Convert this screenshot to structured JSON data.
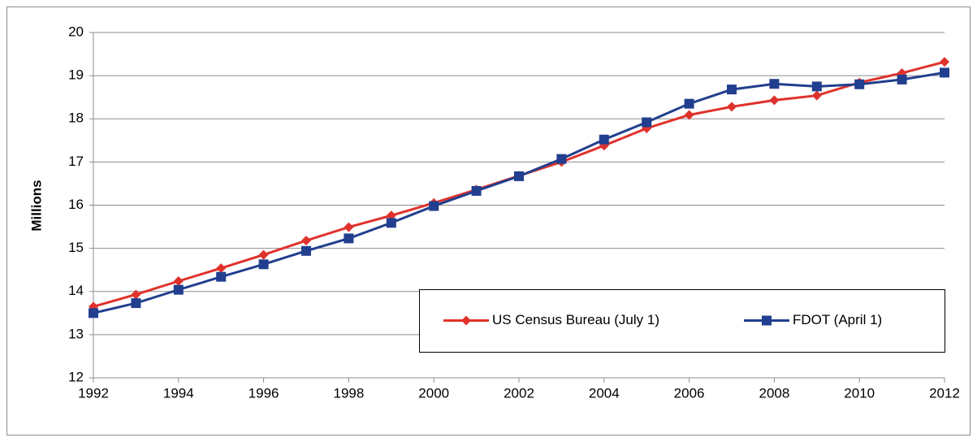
{
  "chart_data": {
    "type": "line",
    "y_label": "Millions",
    "x": [
      1992,
      1993,
      1994,
      1995,
      1996,
      1997,
      1998,
      1999,
      2000,
      2001,
      2002,
      2003,
      2004,
      2005,
      2006,
      2007,
      2008,
      2009,
      2010,
      2011,
      2012
    ],
    "series": [
      {
        "name": "US Census Bureau (July 1)",
        "color": "#e0322c",
        "marker": "diamond",
        "values": [
          13.65,
          13.93,
          14.24,
          14.54,
          14.85,
          15.18,
          15.49,
          15.76,
          16.05,
          16.36,
          16.68,
          17.0,
          17.38,
          17.78,
          18.09,
          18.28,
          18.43,
          18.54,
          18.84,
          19.06,
          19.32
        ]
      },
      {
        "name": "FDOT (April 1)",
        "color": "#213f8e",
        "marker": "square",
        "values": [
          13.5,
          13.73,
          14.04,
          14.34,
          14.63,
          14.94,
          15.23,
          15.59,
          15.98,
          16.33,
          16.67,
          17.07,
          17.52,
          17.92,
          18.35,
          18.68,
          18.81,
          18.75,
          18.8,
          18.91,
          19.07
        ]
      }
    ],
    "xlim": [
      1992,
      2012
    ],
    "xticks": [
      1992,
      1994,
      1996,
      1998,
      2000,
      2002,
      2004,
      2006,
      2008,
      2010,
      2012
    ],
    "ylim": [
      12,
      20
    ],
    "yticks": [
      12,
      13,
      14,
      15,
      16,
      17,
      18,
      19,
      20
    ],
    "grid": true,
    "legend": "lower right"
  }
}
